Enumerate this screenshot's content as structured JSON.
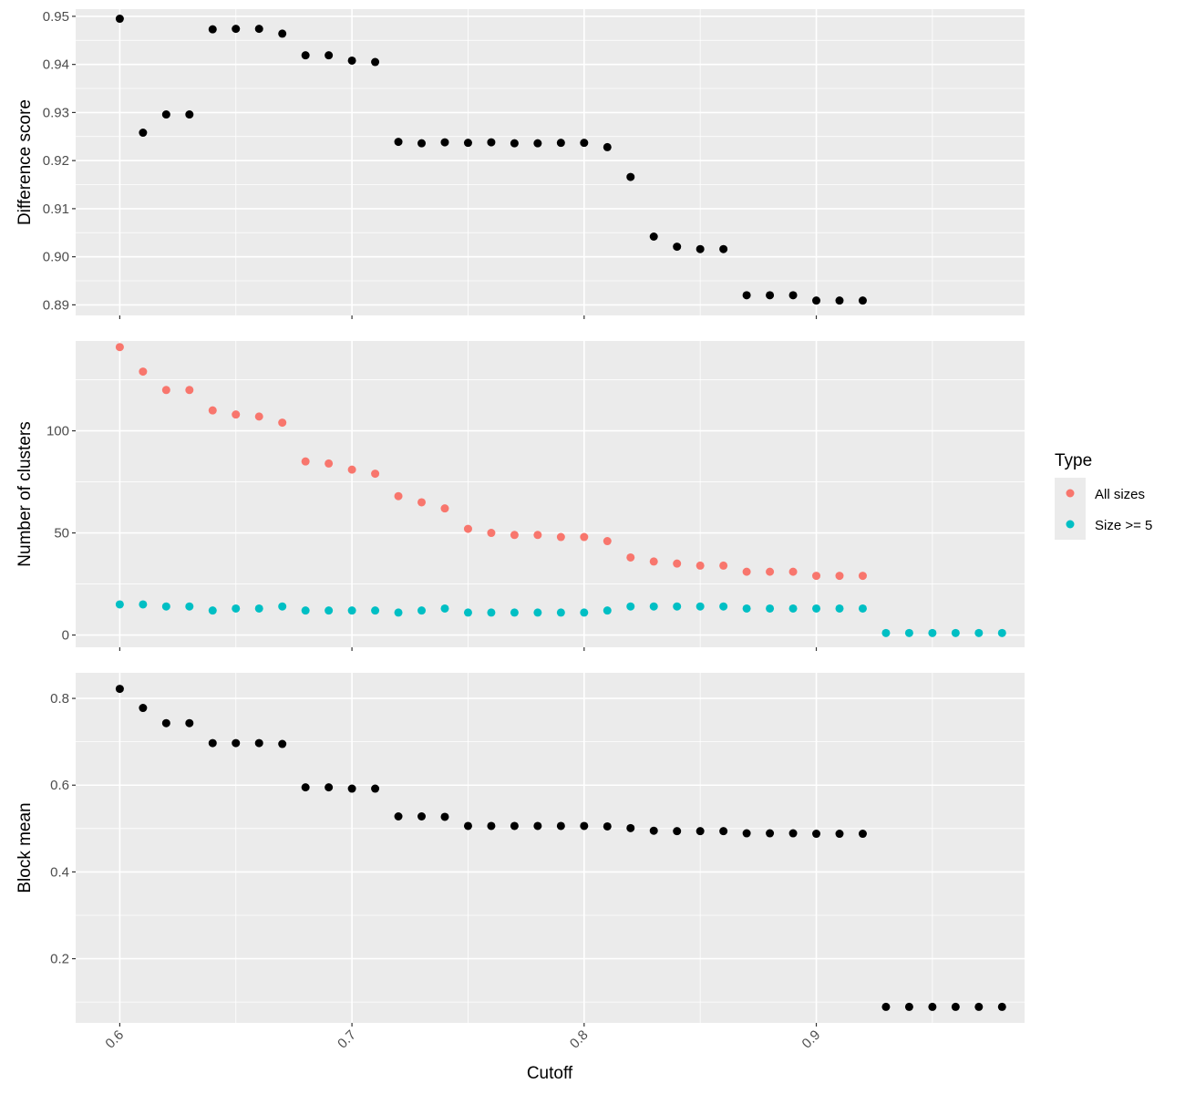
{
  "chart_data": {
    "type": "scatter",
    "xlabel": "Cutoff",
    "x_ticks": [
      "0.6",
      "0.7",
      "0.8",
      "0.9"
    ],
    "xlim": [
      0.581,
      0.9897
    ],
    "grid": true,
    "legend": {
      "title": "Type",
      "placement": "right",
      "entries": [
        {
          "label": "All sizes",
          "color": "#F8766D"
        },
        {
          "label": "Size >= 5",
          "color": "#00BFC4"
        }
      ]
    },
    "panels": [
      {
        "ylabel": "Difference score",
        "ylim": [
          0.8878,
          0.9515
        ],
        "y_ticks": [
          "0.89",
          "0.90",
          "0.91",
          "0.92",
          "0.93",
          "0.94",
          "0.95"
        ],
        "series": [
          {
            "color": "#000000",
            "x": [
              0.6,
              0.61,
              0.62,
              0.63,
              0.64,
              0.65,
              0.66,
              0.67,
              0.68,
              0.69,
              0.7,
              0.71,
              0.72,
              0.73,
              0.74,
              0.75,
              0.76,
              0.77,
              0.78,
              0.79,
              0.8,
              0.81,
              0.82,
              0.83,
              0.84,
              0.85,
              0.86,
              0.87,
              0.88,
              0.89,
              0.9,
              0.91,
              0.92
            ],
            "y": [
              0.9495,
              0.9258,
              0.9296,
              0.9296,
              0.9473,
              0.9474,
              0.9474,
              0.9464,
              0.9419,
              0.9419,
              0.9408,
              0.9405,
              0.9239,
              0.9236,
              0.9238,
              0.9237,
              0.9238,
              0.9236,
              0.9236,
              0.9237,
              0.9237,
              0.9228,
              0.9166,
              0.9042,
              0.9021,
              0.9016,
              0.9016,
              0.892,
              0.892,
              0.892,
              0.8909,
              0.8909,
              0.8909
            ]
          }
        ]
      },
      {
        "ylabel": "Number of clusters",
        "ylim": [
          -6,
          144
        ],
        "y_ticks": [
          "0",
          "50",
          "100"
        ],
        "series": [
          {
            "name": "All sizes",
            "color": "#F8766D",
            "x": [
              0.6,
              0.61,
              0.62,
              0.63,
              0.64,
              0.65,
              0.66,
              0.67,
              0.68,
              0.69,
              0.7,
              0.71,
              0.72,
              0.73,
              0.74,
              0.75,
              0.76,
              0.77,
              0.78,
              0.79,
              0.8,
              0.81,
              0.82,
              0.83,
              0.84,
              0.85,
              0.86,
              0.87,
              0.88,
              0.89,
              0.9,
              0.91,
              0.92
            ],
            "y": [
              141,
              129,
              120,
              120,
              110,
              108,
              107,
              104,
              85,
              84,
              81,
              79,
              68,
              65,
              62,
              52,
              50,
              49,
              49,
              48,
              48,
              46,
              38,
              36,
              35,
              34,
              34,
              31,
              31,
              31,
              29,
              29,
              29
            ]
          },
          {
            "name": "Size >= 5",
            "color": "#00BFC4",
            "x": [
              0.6,
              0.61,
              0.62,
              0.63,
              0.64,
              0.65,
              0.66,
              0.67,
              0.68,
              0.69,
              0.7,
              0.71,
              0.72,
              0.73,
              0.74,
              0.75,
              0.76,
              0.77,
              0.78,
              0.79,
              0.8,
              0.81,
              0.82,
              0.83,
              0.84,
              0.85,
              0.86,
              0.87,
              0.88,
              0.89,
              0.9,
              0.91,
              0.92,
              0.93,
              0.94,
              0.95,
              0.96,
              0.97,
              0.98
            ],
            "y": [
              15,
              15,
              14,
              14,
              12,
              13,
              13,
              14,
              12,
              12,
              12,
              12,
              11,
              12,
              13,
              11,
              11,
              11,
              11,
              11,
              11,
              12,
              14,
              14,
              14,
              14,
              14,
              13,
              13,
              13,
              13,
              13,
              13,
              1,
              1,
              1,
              1,
              1,
              1
            ]
          }
        ]
      },
      {
        "ylabel": "Block mean",
        "ylim": [
          0.052,
          0.859
        ],
        "y_ticks": [
          "0.2",
          "0.4",
          "0.6",
          "0.8"
        ],
        "series": [
          {
            "color": "#000000",
            "x": [
              0.6,
              0.61,
              0.62,
              0.63,
              0.64,
              0.65,
              0.66,
              0.67,
              0.68,
              0.69,
              0.7,
              0.71,
              0.72,
              0.73,
              0.74,
              0.75,
              0.76,
              0.77,
              0.78,
              0.79,
              0.8,
              0.81,
              0.82,
              0.83,
              0.84,
              0.85,
              0.86,
              0.87,
              0.88,
              0.89,
              0.9,
              0.91,
              0.92,
              0.93,
              0.94,
              0.95,
              0.96,
              0.97,
              0.98
            ],
            "y": [
              0.822,
              0.778,
              0.743,
              0.743,
              0.697,
              0.697,
              0.697,
              0.695,
              0.595,
              0.595,
              0.592,
              0.592,
              0.528,
              0.528,
              0.527,
              0.506,
              0.506,
              0.506,
              0.506,
              0.506,
              0.506,
              0.505,
              0.501,
              0.495,
              0.494,
              0.494,
              0.494,
              0.489,
              0.489,
              0.489,
              0.488,
              0.488,
              0.488,
              0.089,
              0.089,
              0.089,
              0.089,
              0.089,
              0.089
            ]
          }
        ]
      }
    ]
  }
}
